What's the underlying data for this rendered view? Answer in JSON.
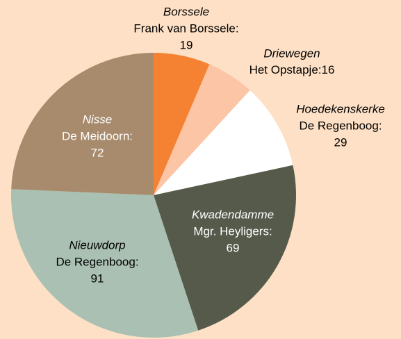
{
  "chart_data": {
    "type": "pie",
    "categories": [
      "Borssele",
      "Driewegen",
      "Hoedekenskerke",
      "Kwadendamme",
      "Nieuwdorp",
      "Nisse"
    ],
    "schools": [
      "Frank van Borssele:",
      "Het Opstapje:",
      "De Regenboog:",
      "Mgr. Heyligers:",
      "De Regenboog:",
      "De Meidoorn:"
    ],
    "values": [
      19,
      16,
      29,
      69,
      91,
      72
    ],
    "colors": [
      "#f58233",
      "#fcc5a5",
      "#ffffff",
      "#565a4b",
      "#a9c0b2",
      "#a88b6d"
    ]
  }
}
